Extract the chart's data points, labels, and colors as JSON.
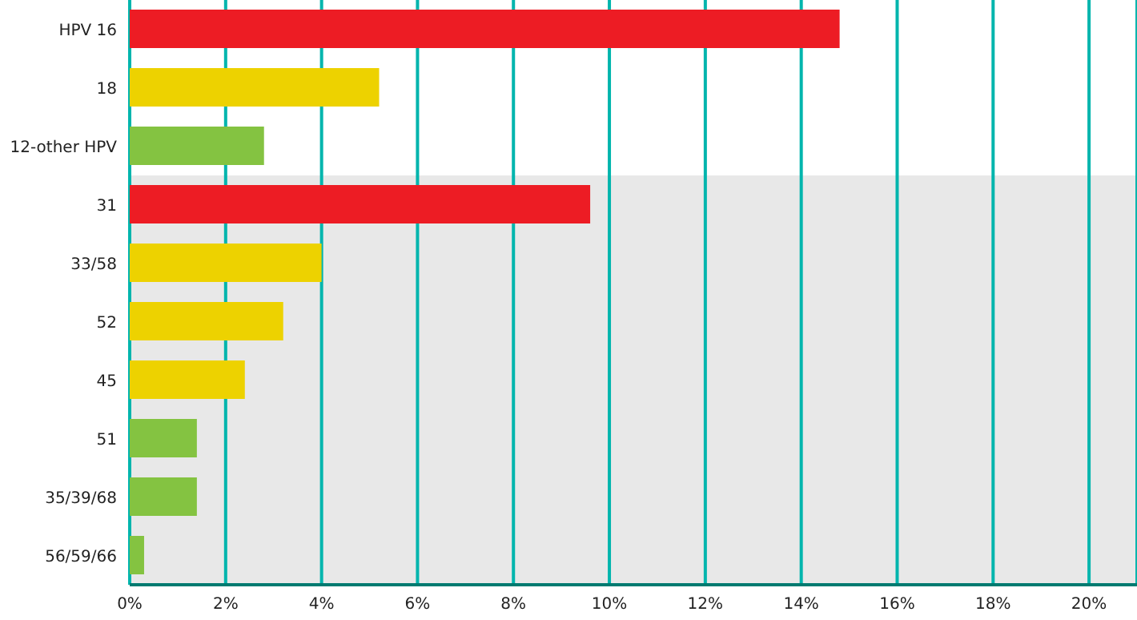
{
  "chart_data": {
    "type": "bar",
    "orientation": "horizontal",
    "categories": [
      "HPV 16",
      "18",
      "12-other HPV",
      "31",
      "33/58",
      "52",
      "45",
      "51",
      "35/39/68",
      "56/59/66"
    ],
    "values": [
      14.8,
      5.2,
      2.8,
      9.6,
      4.0,
      3.2,
      2.4,
      1.4,
      1.4,
      0.3
    ],
    "colors": [
      "#ed1c24",
      "#edd200",
      "#84c341",
      "#ed1c24",
      "#edd200",
      "#edd200",
      "#edd200",
      "#84c341",
      "#84c341",
      "#84c341"
    ],
    "xlim": [
      0,
      21
    ],
    "xticks": [
      {
        "value": 0,
        "label": "0%"
      },
      {
        "value": 2,
        "label": "2%"
      },
      {
        "value": 4,
        "label": "4%"
      },
      {
        "value": 6,
        "label": "6%"
      },
      {
        "value": 8,
        "label": "8%"
      },
      {
        "value": 10,
        "label": "10%"
      },
      {
        "value": 12,
        "label": "12%"
      },
      {
        "value": 14,
        "label": "14%"
      },
      {
        "value": 16,
        "label": "16%"
      },
      {
        "value": 18,
        "label": "18%"
      },
      {
        "value": 20,
        "label": "20%"
      }
    ],
    "bands": [
      {
        "axis": "y",
        "from": "31",
        "to": "56/59/66",
        "color": "#e8e8e8"
      }
    ],
    "grid": "x"
  }
}
